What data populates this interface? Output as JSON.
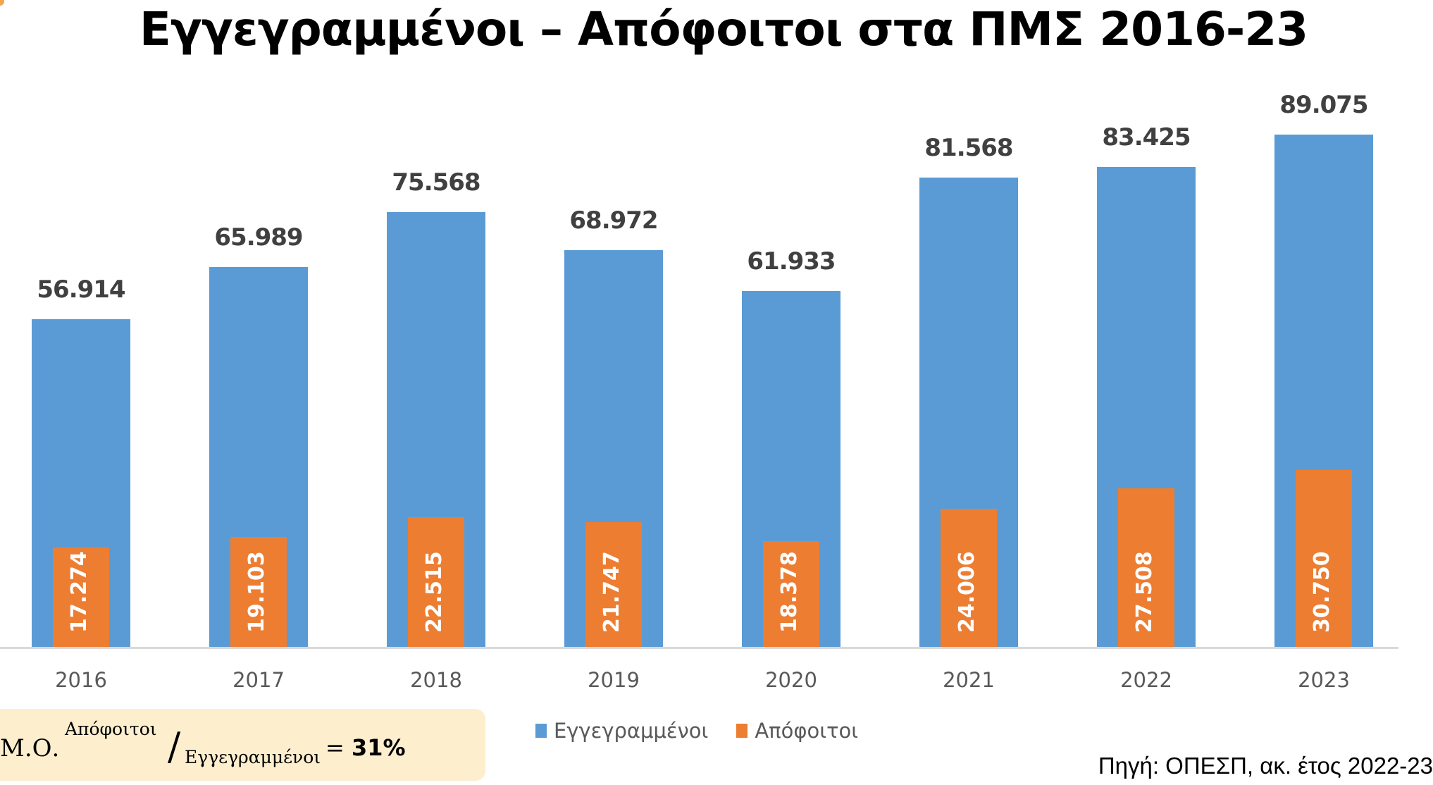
{
  "slide": {
    "title": "Εγγεγραμμένοι – Απόφοιτοι στα ΠΜΣ 2016-23",
    "source": "Πηγή: ΟΠΕΣΠ, ακ. έτος 2022-23",
    "average_box": {
      "prefix": "Μ.Ο.",
      "numerator": "Απόφοιτοι",
      "slash": "/",
      "denominator": "Εγγεγραμμένοι",
      "equals": "= ",
      "value": "31%"
    }
  },
  "colors": {
    "enrolled": "#5b9bd5",
    "graduates": "#ed7d31",
    "average_box_bg": "#fdefce",
    "axis": "#d9d9d9"
  },
  "legend": [
    {
      "label": "Εγγεγραμμένοι",
      "color": "#5b9bd5"
    },
    {
      "label": "Απόφοιτοι",
      "color": "#ed7d31"
    }
  ],
  "chart_data": {
    "type": "bar",
    "title": "Εγγεγραμμένοι – Απόφοιτοι στα ΠΜΣ 2016-23",
    "xlabel": "",
    "ylabel": "",
    "categories": [
      "2016",
      "2017",
      "2018",
      "2019",
      "2020",
      "2021",
      "2022",
      "2023"
    ],
    "series": [
      {
        "name": "Εγγεγραμμένοι",
        "values": [
          56914,
          65989,
          75568,
          68972,
          61933,
          81568,
          83425,
          89075
        ],
        "labels": [
          "56.914",
          "65.989",
          "75.568",
          "68.972",
          "61.933",
          "81.568",
          "83.425",
          "89.075"
        ]
      },
      {
        "name": "Απόφοιτοι",
        "values": [
          17274,
          19103,
          22515,
          21747,
          18378,
          24006,
          27508,
          30750
        ],
        "labels": [
          "17.274",
          "19.103",
          "22.515",
          "21.747",
          "18.378",
          "24.006",
          "27.508",
          "30.750"
        ]
      }
    ],
    "ylim": [
      0,
      95000
    ],
    "grid": false,
    "y_axis_visible": false,
    "legend_position": "bottom",
    "overlap": "graduates bars overlaid inside enrolled bars",
    "annotations": [
      "Μ.Ο. Απόφοιτοι/Εγγεγραμμένοι = 31%",
      "Πηγή: ΟΠΕΣΠ, ακ. έτος 2022-23"
    ]
  }
}
